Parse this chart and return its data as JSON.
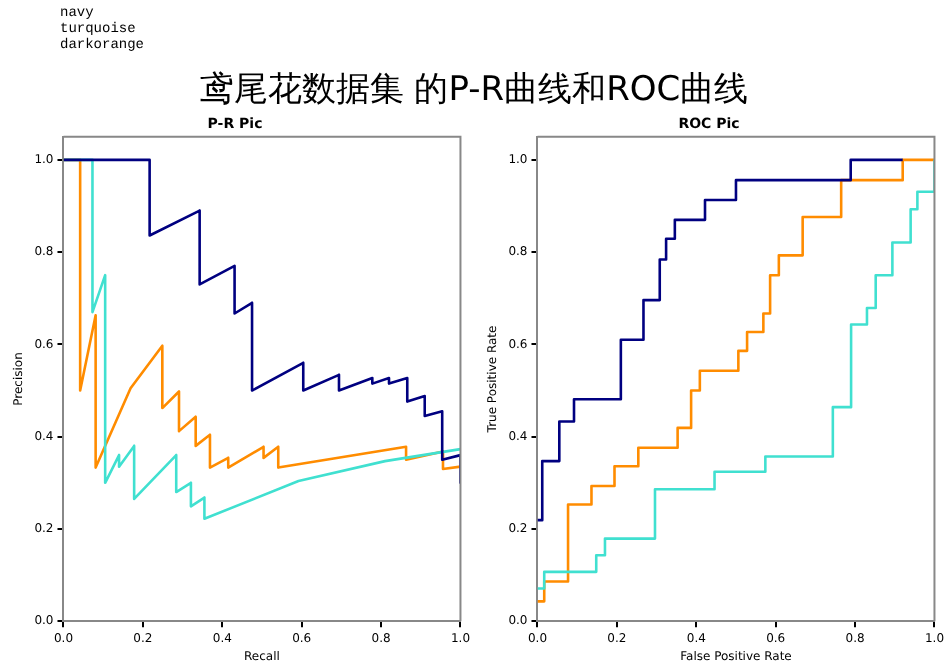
{
  "chart_data": [
    {
      "type": "line",
      "title": "P-R Pic",
      "xlabel": "Recall",
      "ylabel": "Precision",
      "annotations": [
        "navy",
        "turquoise",
        "darkorange",
        "鸢尾花数据集 的P-R曲线和ROC曲线"
      ],
      "xlim": [
        0,
        1
      ],
      "ylim": [
        0,
        1.05
      ],
      "xticks": [
        {
          "value": 0,
          "label": "0.0"
        },
        {
          "value": 0.2,
          "label": "0.2"
        },
        {
          "value": 0.4,
          "label": "0.4"
        },
        {
          "value": 0.6,
          "label": "0.6"
        },
        {
          "value": 0.8,
          "label": "0.8"
        },
        {
          "value": 1,
          "label": "1.0"
        }
      ],
      "yticks": [
        {
          "value": 0,
          "label": "0.0"
        },
        {
          "value": 0.2,
          "label": "0.2"
        },
        {
          "value": 0.4,
          "label": "0.4"
        },
        {
          "value": 0.6,
          "label": "0.6"
        },
        {
          "value": 0.8,
          "label": "0.8"
        },
        {
          "value": 1,
          "label": "1.0"
        }
      ],
      "grid": false,
      "legend": false,
      "marker": "none",
      "line_style": "solid",
      "series": [
        {
          "color": "#000080",
          "x": [
            0,
            0.217,
            0.217,
            0.343,
            0.343,
            0.431,
            0.431,
            0.475,
            0.475,
            0.604,
            0.604,
            0.694,
            0.694,
            0.778,
            0.778,
            0.82,
            0.82,
            0.866,
            0.866,
            0.91,
            0.91,
            0.954,
            0.954,
            1.0,
            1.0
          ],
          "values": [
            1.0,
            1.0,
            0.836,
            0.89,
            0.73,
            0.77,
            0.667,
            0.69,
            0.5,
            0.56,
            0.5,
            0.534,
            0.5,
            0.527,
            0.515,
            0.527,
            0.515,
            0.527,
            0.476,
            0.488,
            0.445,
            0.455,
            0.35,
            0.36,
            0.3
          ]
        },
        {
          "color": "#40e0d0",
          "x": [
            0,
            0.073,
            0.073,
            0.105,
            0.105,
            0.14,
            0.14,
            0.178,
            0.178,
            0.284,
            0.284,
            0.321,
            0.321,
            0.355,
            0.355,
            0.592,
            0.81,
            1.0
          ],
          "values": [
            1.0,
            1.0,
            0.67,
            0.75,
            0.3,
            0.36,
            0.335,
            0.38,
            0.265,
            0.36,
            0.28,
            0.3,
            0.249,
            0.268,
            0.222,
            0.304,
            0.347,
            0.373
          ]
        },
        {
          "color": "#ff8c00",
          "x": [
            0,
            0.042,
            0.042,
            0.081,
            0.081,
            0.169,
            0.249,
            0.249,
            0.291,
            0.291,
            0.333,
            0.333,
            0.369,
            0.369,
            0.415,
            0.415,
            0.504,
            0.504,
            0.541,
            0.541,
            0.863,
            0.863,
            0.956,
            0.956,
            1.0
          ],
          "values": [
            1.0,
            1.0,
            0.5,
            0.663,
            0.333,
            0.505,
            0.597,
            0.462,
            0.498,
            0.412,
            0.443,
            0.38,
            0.404,
            0.333,
            0.354,
            0.333,
            0.378,
            0.354,
            0.378,
            0.333,
            0.378,
            0.35,
            0.368,
            0.33,
            0.335
          ]
        }
      ]
    },
    {
      "type": "line",
      "title": "ROC Pic",
      "xlabel": "False Positive Rate",
      "ylabel": "True Positive Rate",
      "xlim": [
        0,
        1
      ],
      "ylim": [
        0,
        1.05
      ],
      "xticks": [
        {
          "value": 0,
          "label": "0.0"
        },
        {
          "value": 0.2,
          "label": "0.2"
        },
        {
          "value": 0.4,
          "label": "0.4"
        },
        {
          "value": 0.6,
          "label": "0.6"
        },
        {
          "value": 0.8,
          "label": "0.8"
        },
        {
          "value": 1,
          "label": "1.0"
        }
      ],
      "yticks": [
        {
          "value": 0,
          "label": "0.0"
        },
        {
          "value": 0.2,
          "label": "0.2"
        },
        {
          "value": 0.4,
          "label": "0.4"
        },
        {
          "value": 0.6,
          "label": "0.6"
        },
        {
          "value": 0.8,
          "label": "0.8"
        },
        {
          "value": 1,
          "label": "1.0"
        }
      ],
      "grid": false,
      "legend": false,
      "marker": "none",
      "line_style": "solid",
      "series": [
        {
          "color": "#000080",
          "x": [
            0,
            0.012,
            0.012,
            0.055,
            0.055,
            0.092,
            0.092,
            0.21,
            0.21,
            0.267,
            0.267,
            0.308,
            0.308,
            0.324,
            0.324,
            0.346,
            0.346,
            0.422,
            0.422,
            0.5,
            0.5,
            0.789,
            0.789,
            0.92
          ],
          "values": [
            0.219,
            0.219,
            0.347,
            0.347,
            0.433,
            0.433,
            0.481,
            0.481,
            0.61,
            0.61,
            0.696,
            0.696,
            0.784,
            0.784,
            0.829,
            0.829,
            0.87,
            0.87,
            0.913,
            0.913,
            0.956,
            0.956,
            1.0,
            1.0
          ]
        },
        {
          "color": "#40e0d0",
          "x": [
            0,
            0.017,
            0.017,
            0.148,
            0.148,
            0.17,
            0.17,
            0.296,
            0.296,
            0.446,
            0.446,
            0.574,
            0.574,
            0.744,
            0.744,
            0.79,
            0.79,
            0.83,
            0.83,
            0.852,
            0.852,
            0.894,
            0.894,
            0.94,
            0.94,
            0.957,
            0.957,
            1.0,
            1.0
          ],
          "values": [
            0.071,
            0.071,
            0.107,
            0.107,
            0.143,
            0.143,
            0.179,
            0.179,
            0.286,
            0.286,
            0.324,
            0.324,
            0.357,
            0.357,
            0.464,
            0.464,
            0.643,
            0.643,
            0.679,
            0.679,
            0.75,
            0.75,
            0.821,
            0.821,
            0.893,
            0.893,
            0.931,
            0.931,
            1.0
          ]
        },
        {
          "color": "#ff8c00",
          "x": [
            0,
            0.017,
            0.017,
            0.077,
            0.077,
            0.136,
            0.136,
            0.194,
            0.194,
            0.254,
            0.254,
            0.353,
            0.353,
            0.387,
            0.387,
            0.409,
            0.409,
            0.506,
            0.506,
            0.528,
            0.528,
            0.569,
            0.569,
            0.586,
            0.586,
            0.608,
            0.608,
            0.668,
            0.668,
            0.765,
            0.765,
            0.92,
            0.92,
            1.0
          ],
          "values": [
            0.043,
            0.043,
            0.086,
            0.086,
            0.253,
            0.253,
            0.293,
            0.293,
            0.336,
            0.336,
            0.376,
            0.376,
            0.419,
            0.419,
            0.5,
            0.5,
            0.543,
            0.543,
            0.586,
            0.586,
            0.627,
            0.627,
            0.667,
            0.667,
            0.75,
            0.75,
            0.793,
            0.793,
            0.876,
            0.876,
            0.956,
            0.956,
            1.0,
            1.0
          ]
        }
      ]
    }
  ]
}
